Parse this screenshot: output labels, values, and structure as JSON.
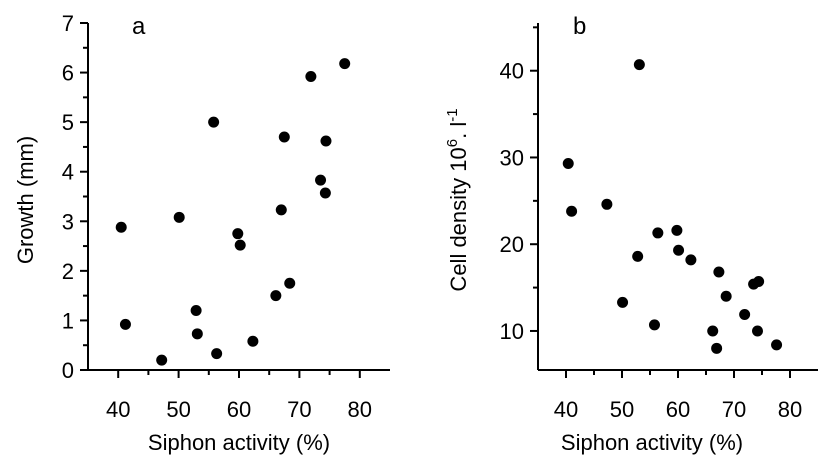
{
  "chart_data": [
    {
      "type": "scatter",
      "panel": "a",
      "xlabel": "Siphon activity (%)",
      "ylabel": "Growth (mm)",
      "xlim": [
        35,
        85
      ],
      "ylim": [
        0,
        7
      ],
      "x_ticks": [
        40,
        50,
        60,
        70,
        80
      ],
      "y_ticks": [
        0,
        1,
        2,
        3,
        4,
        5,
        6,
        7
      ],
      "grid": false,
      "x": [
        40.5,
        41.2,
        47.2,
        50.1,
        52.9,
        53.1,
        55.8,
        56.3,
        59.8,
        60.2,
        62.3,
        66.1,
        67.0,
        67.5,
        68.4,
        71.9,
        73.5,
        74.3,
        74.4,
        77.5
      ],
      "y": [
        2.88,
        0.92,
        0.2,
        3.08,
        1.2,
        0.73,
        5.0,
        0.33,
        2.75,
        2.52,
        0.58,
        1.5,
        3.23,
        4.7,
        1.75,
        5.92,
        3.83,
        3.57,
        4.62,
        6.18
      ]
    },
    {
      "type": "scatter",
      "panel": "b",
      "xlabel": "Siphon activity (%)",
      "ylabel": "Cell density 10",
      "ylabel_unit": ". l",
      "ylabel_sup1": "6",
      "ylabel_sup2": "-1",
      "xlim": [
        35,
        85
      ],
      "ylim": [
        5.5,
        45.5
      ],
      "x_ticks": [
        40,
        50,
        60,
        70,
        80
      ],
      "y_ticks": [
        10,
        20,
        30,
        40
      ],
      "grid": false,
      "x": [
        40.4,
        41.0,
        47.3,
        50.1,
        52.8,
        53.1,
        55.8,
        56.4,
        59.8,
        60.1,
        62.3,
        66.2,
        66.9,
        67.3,
        68.6,
        71.9,
        73.5,
        74.2,
        74.4,
        77.6
      ],
      "y": [
        29.3,
        23.8,
        24.6,
        13.3,
        18.6,
        40.7,
        10.7,
        21.3,
        21.6,
        19.3,
        18.2,
        10.0,
        8.0,
        16.8,
        14.0,
        11.9,
        15.4,
        10.0,
        15.7,
        8.4
      ]
    }
  ]
}
